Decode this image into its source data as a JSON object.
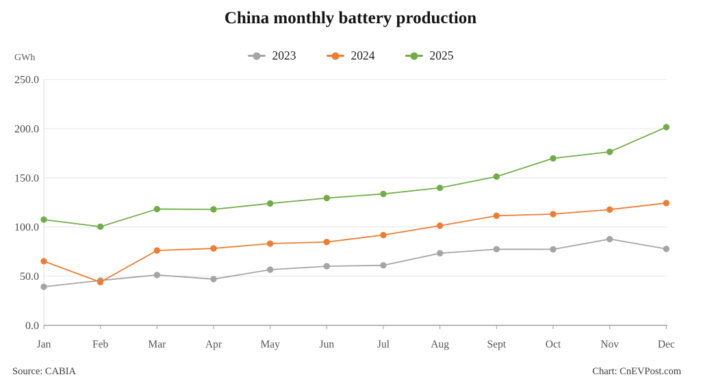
{
  "chart_data": {
    "type": "line",
    "title": "China monthly battery production",
    "ylabel": "GWh",
    "categories": [
      "Jan",
      "Feb",
      "Mar",
      "Apr",
      "May",
      "Jun",
      "Jul",
      "Aug",
      "Sept",
      "Oct",
      "Nov",
      "Dec"
    ],
    "ylim": [
      0,
      250
    ],
    "yticks": [
      0,
      50,
      100,
      150,
      200,
      250
    ],
    "ytick_labels": [
      "0.0",
      "50.0",
      "100.0",
      "150.0",
      "200.0",
      "250.0"
    ],
    "grid": "horizontal",
    "legend_position": "top-center",
    "series": [
      {
        "name": "2023",
        "color": "#a5a5a5",
        "values": [
          39.2,
          45.6,
          51.2,
          47.0,
          56.6,
          60.1,
          61.0,
          73.3,
          77.4,
          77.3,
          87.7,
          77.7
        ]
      },
      {
        "name": "2024",
        "color": "#ed7d31",
        "values": [
          65.2,
          44.0,
          76.1,
          78.2,
          83.1,
          84.7,
          91.8,
          101.3,
          111.4,
          113.1,
          117.7,
          124.3
        ]
      },
      {
        "name": "2025",
        "color": "#70ad47",
        "values": [
          107.5,
          100.3,
          118.2,
          117.9,
          123.9,
          129.4,
          133.6,
          139.8,
          151.2,
          169.8,
          176.4,
          201.5
        ]
      }
    ],
    "colors": {
      "gridline": "#e5e5e5",
      "y_axis_line": "#dcdcdc",
      "x_axis_line": "#9e9e9e"
    }
  },
  "footer": {
    "source": "Source: CABIA",
    "credit": "Chart: CnEVPost.com"
  }
}
